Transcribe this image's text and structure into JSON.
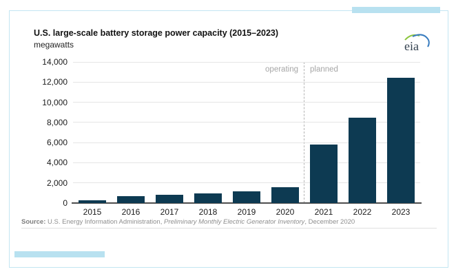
{
  "header": {
    "title": "U.S. large-scale battery storage power capacity (2015–2023)",
    "subtitle": "megawatts",
    "logo_text": "eia"
  },
  "chart_data": {
    "type": "bar",
    "title": "U.S. large-scale battery storage power capacity (2015–2023)",
    "ylabel": "megawatts",
    "xlabel": "",
    "categories": [
      "2015",
      "2016",
      "2017",
      "2018",
      "2019",
      "2020",
      "2021",
      "2022",
      "2023"
    ],
    "values": [
      250,
      650,
      800,
      950,
      1150,
      1600,
      5800,
      8500,
      12400
    ],
    "ylim": [
      0,
      14000
    ],
    "ytick_step": 2000,
    "ytick_labels": [
      "14,000",
      "12,000",
      "10,000",
      "8,000",
      "6,000",
      "4,000",
      "2,000",
      "0"
    ],
    "grid": true,
    "legend": "none",
    "bar_color": "#0d3a52",
    "annotations": {
      "operating": "operating",
      "planned": "planned"
    },
    "divider_between": [
      "2020",
      "2021"
    ]
  },
  "source": {
    "label": "Source:",
    "part1": " U.S. Energy Information Administration, ",
    "italic": "Preliminary Monthly Electric Generator Inventory",
    "part2": ", December 2020"
  },
  "colors": {
    "bar": "#0d3a52",
    "accent_light_blue": "#b8e1f0",
    "card_border": "#c2e5f2",
    "gridline": "#e5e5e5",
    "axis_line": "#4d4d4d",
    "muted_text": "#a6a6a6",
    "source_text": "#8e8e8e",
    "logo_green": "#8dc63f",
    "logo_blue": "#3a7dbf"
  }
}
